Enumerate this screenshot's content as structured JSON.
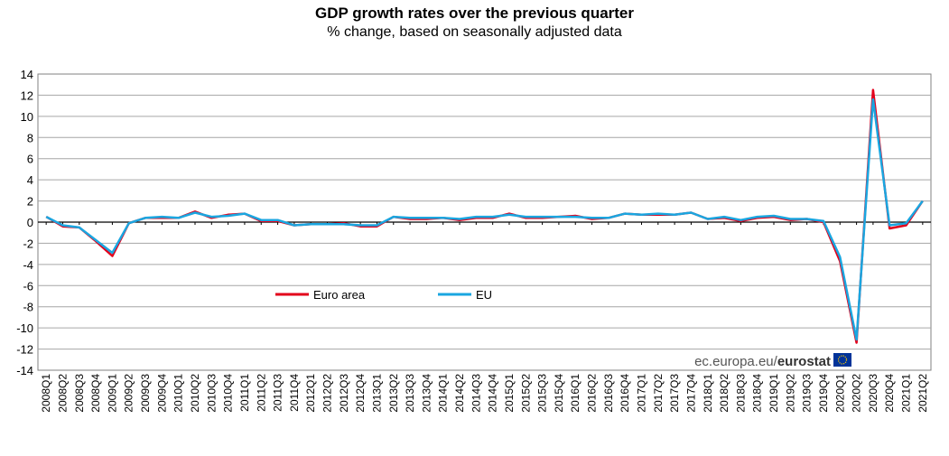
{
  "chart_data": {
    "type": "line",
    "title": "GDP growth rates over the previous quarter",
    "subtitle": "% change, based on seasonally adjusted data",
    "xlabel": "",
    "ylabel": "",
    "ylim": [
      -14,
      14
    ],
    "yticks": [
      14,
      12,
      10,
      8,
      6,
      4,
      2,
      0,
      -2,
      -4,
      -6,
      -8,
      -10,
      -12,
      -14
    ],
    "grid": true,
    "legend_position": "lower-left inside plot",
    "categories": [
      "2008Q1",
      "2008Q2",
      "2008Q3",
      "2008Q4",
      "2009Q1",
      "2009Q2",
      "2009Q3",
      "2009Q4",
      "2010Q1",
      "2010Q2",
      "2010Q3",
      "2010Q4",
      "2011Q1",
      "2011Q2",
      "2011Q3",
      "2011Q4",
      "2012Q1",
      "2012Q2",
      "2012Q3",
      "2012Q4",
      "2013Q1",
      "2013Q2",
      "2013Q3",
      "2013Q4",
      "2014Q1",
      "2014Q2",
      "2014Q3",
      "2014Q4",
      "2015Q1",
      "2015Q2",
      "2015Q3",
      "2015Q4",
      "2016Q1",
      "2016Q2",
      "2016Q3",
      "2016Q4",
      "2017Q1",
      "2017Q2",
      "2017Q3",
      "2017Q4",
      "2018Q1",
      "2018Q2",
      "2018Q3",
      "2018Q4",
      "2019Q1",
      "2019Q2",
      "2019Q3",
      "2019Q4",
      "2020Q1",
      "2020Q2",
      "2020Q3",
      "2020Q4",
      "2021Q1",
      "2021Q2"
    ],
    "series": [
      {
        "name": "Euro area",
        "color": "#e3001b",
        "values": [
          0.5,
          -0.4,
          -0.5,
          -1.8,
          -3.2,
          -0.1,
          0.4,
          0.4,
          0.4,
          1.0,
          0.4,
          0.7,
          0.8,
          0.1,
          0.1,
          -0.3,
          -0.2,
          -0.2,
          -0.1,
          -0.4,
          -0.4,
          0.5,
          0.3,
          0.3,
          0.4,
          0.2,
          0.4,
          0.4,
          0.8,
          0.4,
          0.4,
          0.5,
          0.6,
          0.3,
          0.4,
          0.8,
          0.7,
          0.7,
          0.7,
          0.9,
          0.3,
          0.4,
          0.1,
          0.4,
          0.5,
          0.2,
          0.3,
          0.0,
          -3.7,
          -11.4,
          12.5,
          -0.6,
          -0.3,
          2.0
        ]
      },
      {
        "name": "EU",
        "color": "#1aa6e0",
        "values": [
          0.5,
          -0.3,
          -0.5,
          -1.7,
          -2.9,
          -0.1,
          0.4,
          0.5,
          0.4,
          0.9,
          0.5,
          0.6,
          0.8,
          0.2,
          0.2,
          -0.3,
          -0.2,
          -0.2,
          -0.2,
          -0.3,
          -0.3,
          0.5,
          0.4,
          0.4,
          0.4,
          0.3,
          0.5,
          0.5,
          0.7,
          0.5,
          0.5,
          0.5,
          0.5,
          0.4,
          0.4,
          0.8,
          0.7,
          0.8,
          0.7,
          0.9,
          0.3,
          0.5,
          0.2,
          0.5,
          0.6,
          0.3,
          0.3,
          0.1,
          -3.3,
          -11.1,
          11.6,
          -0.3,
          -0.1,
          2.0
        ]
      }
    ]
  },
  "watermark": {
    "prefix": "ec.europa.eu/",
    "brand": "eurostat"
  }
}
